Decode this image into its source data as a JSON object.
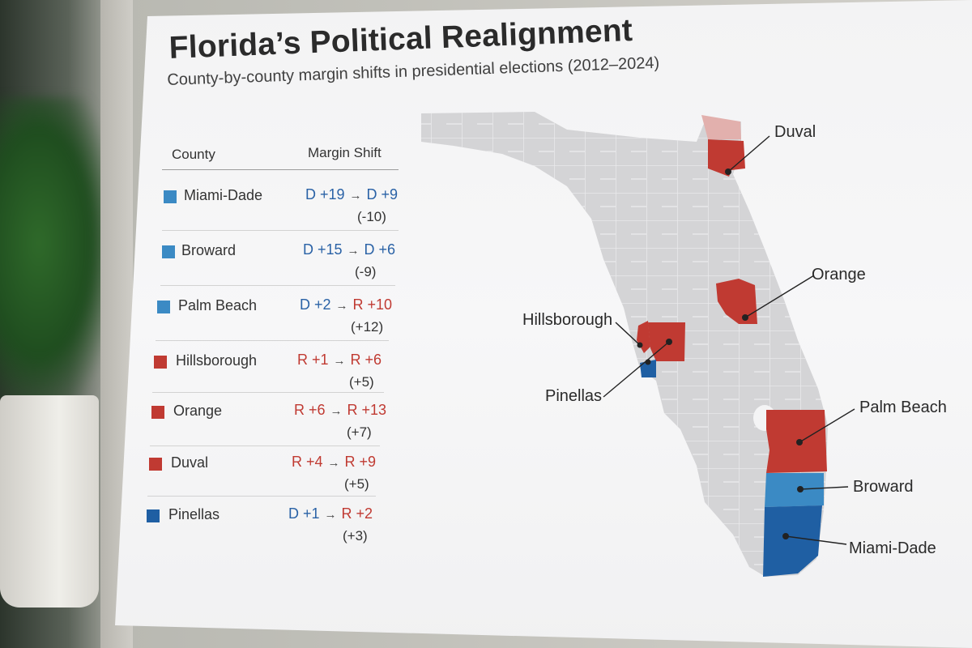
{
  "poster": {
    "title": "Florida’s Political Realignment",
    "subtitle": "County-by-county margin shifts in presidential elections (2012–2024)"
  },
  "table": {
    "col_county": "County",
    "col_shift": "Margin Shift",
    "rows": [
      {
        "county": "Miami-Dade",
        "party": "D",
        "from": "D +19",
        "to": "D +9",
        "from_party": "D",
        "to_party": "D",
        "delta": "(-10)"
      },
      {
        "county": "Broward",
        "party": "D",
        "from": "D +15",
        "to": "D +6",
        "from_party": "D",
        "to_party": "D",
        "delta": "(-9)"
      },
      {
        "county": "Palm Beach",
        "party": "D",
        "from": "D +2",
        "to": "R +10",
        "from_party": "D",
        "to_party": "R",
        "delta": "(+12)"
      },
      {
        "county": "Hillsborough",
        "party": "R",
        "from": "R +1",
        "to": "R +6",
        "from_party": "R",
        "to_party": "R",
        "delta": "(+5)"
      },
      {
        "county": "Orange",
        "party": "R",
        "from": "R +6",
        "to": "R +13",
        "from_party": "R",
        "to_party": "R",
        "delta": "(+7)"
      },
      {
        "county": "Duval",
        "party": "R",
        "from": "R +4",
        "to": "R +9",
        "from_party": "R",
        "to_party": "R",
        "delta": "(+5)"
      },
      {
        "county": "Pinellas",
        "party": "D",
        "from": "D +1",
        "to": "R +2",
        "from_party": "D",
        "to_party": "R",
        "delta": "(+3)"
      }
    ],
    "arrow": "→"
  },
  "map": {
    "labels": {
      "duval": "Duval",
      "orange": "Orange",
      "hillsborough": "Hillsborough",
      "pinellas": "Pinellas",
      "palm_beach": "Palm Beach",
      "broward": "Broward",
      "miami_dade": "Miami-Dade"
    }
  },
  "colors": {
    "republican": "#c03a32",
    "democrat_dark": "#1f5fa3",
    "democrat_light": "#3b8ac4",
    "state_fill": "#d4d4d6",
    "county_lines": "#eeeeef"
  }
}
